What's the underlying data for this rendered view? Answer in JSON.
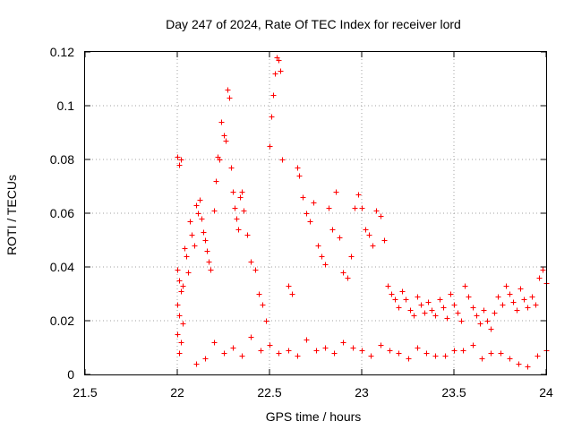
{
  "chart_data": {
    "type": "scatter",
    "title": "Day 247 of 2024, Rate Of TEC Index for receiver lord",
    "xlabel": "GPS time / hours",
    "ylabel": "ROTI / TECUs",
    "xlim": [
      21.5,
      24
    ],
    "ylim": [
      0,
      0.12
    ],
    "xticks": [
      "21.5",
      "22",
      "22.5",
      "23",
      "23.5",
      "24"
    ],
    "yticks": [
      "0",
      "0.02",
      "0.04",
      "0.06",
      "0.08",
      "0.1",
      "0.12"
    ],
    "grid": true,
    "marker": "+",
    "color": "#ff0000",
    "series": [
      {
        "points": [
          [
            22.0,
            0.081
          ],
          [
            22.01,
            0.078
          ],
          [
            22.02,
            0.08
          ],
          [
            22.0,
            0.039
          ],
          [
            22.01,
            0.035
          ],
          [
            22.02,
            0.031
          ],
          [
            22.0,
            0.026
          ],
          [
            22.01,
            0.022
          ],
          [
            22.03,
            0.019
          ],
          [
            22.0,
            0.015
          ],
          [
            22.02,
            0.012
          ],
          [
            22.01,
            0.008
          ],
          [
            22.03,
            0.033
          ],
          [
            22.04,
            0.047
          ],
          [
            22.05,
            0.044
          ],
          [
            22.06,
            0.038
          ],
          [
            22.07,
            0.057
          ],
          [
            22.08,
            0.052
          ],
          [
            22.09,
            0.048
          ],
          [
            22.1,
            0.063
          ],
          [
            22.11,
            0.06
          ],
          [
            22.12,
            0.065
          ],
          [
            22.13,
            0.058
          ],
          [
            22.14,
            0.053
          ],
          [
            22.15,
            0.05
          ],
          [
            22.16,
            0.046
          ],
          [
            22.17,
            0.042
          ],
          [
            22.18,
            0.039
          ],
          [
            22.2,
            0.061
          ],
          [
            22.21,
            0.072
          ],
          [
            22.22,
            0.081
          ],
          [
            22.23,
            0.08
          ],
          [
            22.24,
            0.094
          ],
          [
            22.25,
            0.089
          ],
          [
            22.26,
            0.087
          ],
          [
            22.27,
            0.106
          ],
          [
            22.28,
            0.103
          ],
          [
            22.29,
            0.077
          ],
          [
            22.3,
            0.068
          ],
          [
            22.31,
            0.062
          ],
          [
            22.32,
            0.058
          ],
          [
            22.33,
            0.054
          ],
          [
            22.34,
            0.066
          ],
          [
            22.35,
            0.068
          ],
          [
            22.36,
            0.061
          ],
          [
            22.38,
            0.052
          ],
          [
            22.4,
            0.042
          ],
          [
            22.42,
            0.039
          ],
          [
            22.44,
            0.03
          ],
          [
            22.46,
            0.026
          ],
          [
            22.48,
            0.02
          ],
          [
            22.5,
            0.085
          ],
          [
            22.51,
            0.096
          ],
          [
            22.52,
            0.104
          ],
          [
            22.53,
            0.112
          ],
          [
            22.54,
            0.118
          ],
          [
            22.55,
            0.117
          ],
          [
            22.56,
            0.113
          ],
          [
            22.57,
            0.08
          ],
          [
            22.6,
            0.033
          ],
          [
            22.62,
            0.03
          ],
          [
            22.65,
            0.077
          ],
          [
            22.66,
            0.074
          ],
          [
            22.68,
            0.066
          ],
          [
            22.7,
            0.06
          ],
          [
            22.72,
            0.057
          ],
          [
            22.74,
            0.064
          ],
          [
            22.76,
            0.048
          ],
          [
            22.78,
            0.044
          ],
          [
            22.8,
            0.041
          ],
          [
            22.82,
            0.062
          ],
          [
            22.84,
            0.054
          ],
          [
            22.86,
            0.068
          ],
          [
            22.88,
            0.051
          ],
          [
            22.9,
            0.038
          ],
          [
            22.92,
            0.036
          ],
          [
            22.94,
            0.044
          ],
          [
            22.96,
            0.062
          ],
          [
            22.98,
            0.067
          ],
          [
            23.0,
            0.062
          ],
          [
            23.02,
            0.054
          ],
          [
            23.04,
            0.052
          ],
          [
            23.06,
            0.048
          ],
          [
            23.08,
            0.061
          ],
          [
            23.1,
            0.059
          ],
          [
            23.12,
            0.05
          ],
          [
            23.14,
            0.033
          ],
          [
            23.16,
            0.03
          ],
          [
            23.18,
            0.028
          ],
          [
            23.2,
            0.025
          ],
          [
            23.22,
            0.031
          ],
          [
            23.24,
            0.028
          ],
          [
            23.26,
            0.024
          ],
          [
            23.28,
            0.022
          ],
          [
            23.3,
            0.029
          ],
          [
            23.32,
            0.026
          ],
          [
            23.34,
            0.023
          ],
          [
            23.36,
            0.027
          ],
          [
            23.38,
            0.024
          ],
          [
            23.4,
            0.022
          ],
          [
            23.42,
            0.028
          ],
          [
            23.44,
            0.025
          ],
          [
            23.46,
            0.021
          ],
          [
            23.48,
            0.03
          ],
          [
            23.5,
            0.026
          ],
          [
            23.52,
            0.023
          ],
          [
            23.54,
            0.02
          ],
          [
            23.56,
            0.033
          ],
          [
            23.58,
            0.029
          ],
          [
            23.6,
            0.025
          ],
          [
            23.62,
            0.022
          ],
          [
            23.64,
            0.019
          ],
          [
            23.66,
            0.024
          ],
          [
            23.68,
            0.02
          ],
          [
            23.7,
            0.017
          ],
          [
            23.72,
            0.023
          ],
          [
            23.74,
            0.029
          ],
          [
            23.76,
            0.026
          ],
          [
            23.78,
            0.033
          ],
          [
            23.8,
            0.03
          ],
          [
            23.82,
            0.027
          ],
          [
            23.84,
            0.024
          ],
          [
            23.86,
            0.032
          ],
          [
            23.88,
            0.028
          ],
          [
            23.9,
            0.025
          ],
          [
            23.92,
            0.029
          ],
          [
            23.94,
            0.026
          ],
          [
            23.96,
            0.036
          ],
          [
            23.98,
            0.039
          ],
          [
            24.0,
            0.034
          ],
          [
            22.2,
            0.012
          ],
          [
            22.3,
            0.01
          ],
          [
            22.4,
            0.014
          ],
          [
            22.5,
            0.011
          ],
          [
            22.6,
            0.009
          ],
          [
            22.7,
            0.013
          ],
          [
            22.8,
            0.01
          ],
          [
            22.9,
            0.012
          ],
          [
            23.0,
            0.009
          ],
          [
            23.1,
            0.011
          ],
          [
            23.2,
            0.008
          ],
          [
            23.3,
            0.01
          ],
          [
            23.4,
            0.007
          ],
          [
            23.5,
            0.009
          ],
          [
            23.6,
            0.011
          ],
          [
            23.7,
            0.008
          ],
          [
            23.8,
            0.006
          ],
          [
            23.85,
            0.004
          ],
          [
            23.9,
            0.003
          ],
          [
            23.95,
            0.007
          ],
          [
            24.0,
            0.009
          ],
          [
            22.1,
            0.004
          ],
          [
            22.15,
            0.006
          ],
          [
            22.25,
            0.008
          ],
          [
            22.35,
            0.007
          ],
          [
            22.45,
            0.009
          ],
          [
            22.55,
            0.008
          ],
          [
            22.65,
            0.007
          ],
          [
            22.75,
            0.009
          ],
          [
            22.85,
            0.008
          ],
          [
            22.95,
            0.01
          ],
          [
            23.05,
            0.007
          ],
          [
            23.15,
            0.009
          ],
          [
            23.25,
            0.006
          ],
          [
            23.35,
            0.008
          ],
          [
            23.45,
            0.007
          ],
          [
            23.55,
            0.009
          ],
          [
            23.65,
            0.006
          ],
          [
            23.75,
            0.008
          ]
        ]
      }
    ]
  }
}
